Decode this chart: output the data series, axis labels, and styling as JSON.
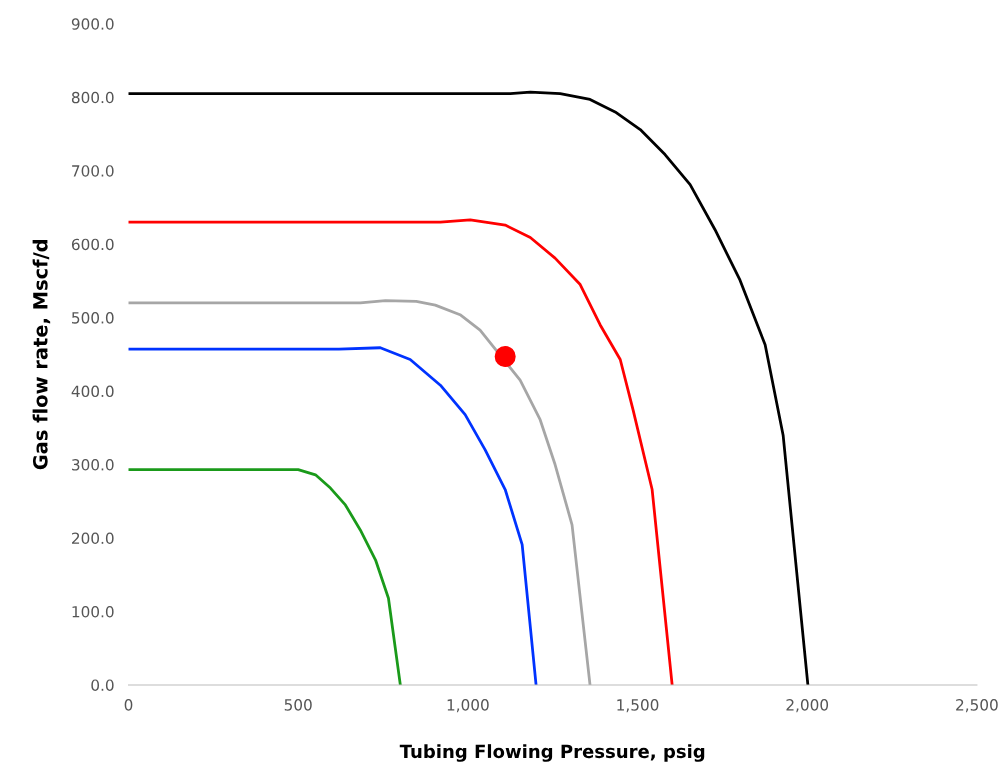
{
  "chart_data": {
    "type": "line",
    "xlabel": "Tubing Flowing Pressure, psig",
    "ylabel": "Gas flow rate, Mscf/d",
    "xlim": [
      0,
      2500
    ],
    "ylim": [
      0,
      900
    ],
    "xticks": [
      0,
      500,
      {
        "value": 1000,
        "label": "1,000"
      },
      {
        "value": 1500,
        "label": "1,500"
      },
      {
        "value": 2000,
        "label": "2,000"
      },
      {
        "value": 2500,
        "label": "2,500"
      }
    ],
    "yticks": [
      {
        "value": 0,
        "label": "0.0"
      },
      {
        "value": 100,
        "label": "100.0"
      },
      {
        "value": 200,
        "label": "200.0"
      },
      {
        "value": 300,
        "label": "300.0"
      },
      {
        "value": 400,
        "label": "400.0"
      },
      {
        "value": 500,
        "label": "500.0"
      },
      {
        "value": 600,
        "label": "600.0"
      },
      {
        "value": 700,
        "label": "700.0"
      },
      {
        "value": 800,
        "label": "800.0"
      },
      {
        "value": 900,
        "label": "900.0"
      }
    ],
    "grid": false,
    "legend": false,
    "marker": "none",
    "line_style": "solid",
    "series": [
      {
        "color": "#000000",
        "x": [
          0,
          1125,
          1184,
          1272,
          1360,
          1434,
          1508,
          1581,
          1655,
          1728,
          1802,
          1876,
          1929,
          2002
        ],
        "values": [
          805,
          805,
          807,
          805,
          797,
          780,
          756,
          722,
          681,
          620,
          551,
          463,
          340,
          0
        ]
      },
      {
        "color": "#ff0000",
        "x": [
          0,
          919,
          1007,
          1110,
          1184,
          1257,
          1331,
          1390,
          1449,
          1487,
          1543,
          1602
        ],
        "values": [
          630,
          630,
          633,
          626,
          609,
          581,
          545,
          490,
          443,
          374,
          266,
          0
        ]
      },
      {
        "color": "#a6a6a6",
        "x": [
          0,
          683,
          757,
          848,
          904,
          977,
          1036,
          1154,
          1213,
          1257,
          1307,
          1360
        ],
        "values": [
          520,
          520,
          523,
          522,
          517,
          504,
          483,
          415,
          361,
          300,
          218,
          0
        ]
      },
      {
        "color": "#0033ff",
        "x": [
          0,
          620,
          742,
          830,
          919,
          992,
          1051,
          1110,
          1160,
          1201
        ],
        "values": [
          457,
          457,
          459,
          443,
          408,
          368,
          320,
          266,
          191,
          0
        ]
      },
      {
        "color": "#1a9a1a",
        "x": [
          0,
          500,
          551,
          595,
          639,
          683,
          728,
          766,
          801
        ],
        "values": [
          293,
          293,
          286,
          268,
          245,
          211,
          170,
          118,
          0
        ]
      },
      {
        "type": "scatter",
        "color": "#ff0000",
        "marker": "circle",
        "x": [
          1110
        ],
        "values": [
          447
        ]
      }
    ]
  }
}
